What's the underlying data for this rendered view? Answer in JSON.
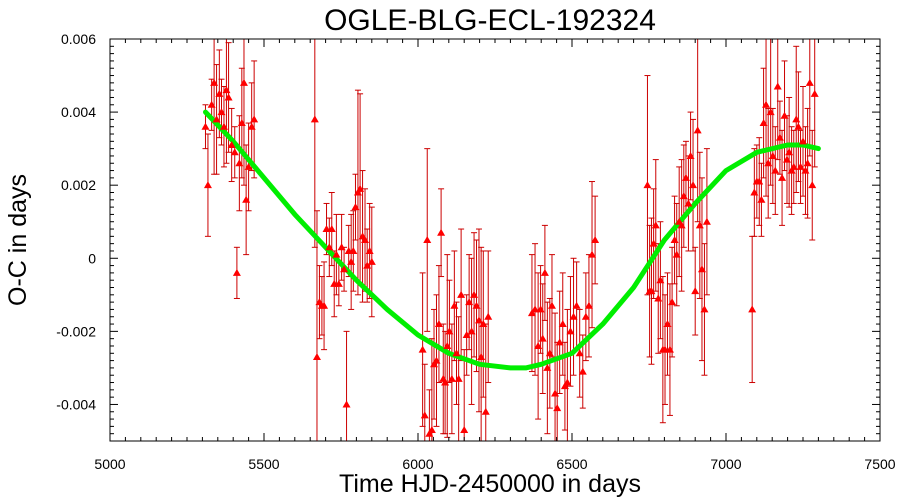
{
  "chart_data": {
    "type": "scatter",
    "title": "OGLE-BLG-ECL-192324",
    "xlabel": "Time HJD-2450000 in days",
    "ylabel": "O-C in days",
    "xlim": [
      5000,
      7500
    ],
    "ylim": [
      -0.005,
      0.006
    ],
    "x_ticks": [
      5000,
      5500,
      6000,
      6500,
      7000,
      7500
    ],
    "x_tick_labels": [
      "5000",
      "5500",
      "6000",
      "6500",
      "7000",
      "7500"
    ],
    "y_ticks": [
      -0.004,
      -0.002,
      0,
      0.002,
      0.004,
      0.006
    ],
    "y_tick_labels": [
      "-0.004",
      "-0.002",
      "0",
      "0.002",
      "0.004",
      "0.006"
    ],
    "grid": false,
    "colors": {
      "points": "#ff0000",
      "errorbars": "#cc0000",
      "fit": "#00ee00"
    },
    "series": [
      {
        "kind": "points_with_errorbars",
        "points": [
          [
            5310,
            0.0036,
            0.0006
          ],
          [
            5318,
            0.002,
            0.0014
          ],
          [
            5330,
            0.0042,
            0.0007
          ],
          [
            5338,
            0.0048,
            0.0025
          ],
          [
            5346,
            0.0038,
            0.0015
          ],
          [
            5355,
            0.0045,
            0.0012
          ],
          [
            5362,
            0.004,
            0.0009
          ],
          [
            5370,
            0.0036,
            0.0011
          ],
          [
            5378,
            0.0046,
            0.002
          ],
          [
            5385,
            0.0044,
            0.0015
          ],
          [
            5395,
            0.0031,
            0.001
          ],
          [
            5405,
            0.0029,
            0.0007
          ],
          [
            5412,
            -0.0004,
            0.0007
          ],
          [
            5420,
            0.0026,
            0.0013
          ],
          [
            5428,
            0.0037,
            0.0015
          ],
          [
            5435,
            0.0048,
            0.0028
          ],
          [
            5442,
            0.0016,
            0.0015
          ],
          [
            5450,
            0.0025,
            0.0012
          ],
          [
            5460,
            0.0036,
            0.0012
          ],
          [
            5468,
            0.0038,
            0.0016
          ],
          [
            5665,
            0.0038,
            0.0035
          ],
          [
            5672,
            -0.0027,
            0.004
          ],
          [
            5680,
            -0.0012,
            0.001
          ],
          [
            5688,
            -0.0013,
            0.0008
          ],
          [
            5695,
            -0.0013,
            0.0012
          ],
          [
            5703,
            0.0008,
            0.0007
          ],
          [
            5712,
            0.0003,
            0.0008
          ],
          [
            5720,
            0.0008,
            0.001
          ],
          [
            5728,
            -0.0007,
            0.0009
          ],
          [
            5735,
            0.0001,
            0.0011
          ],
          [
            5743,
            -0.0007,
            0.0006
          ],
          [
            5752,
            0.0003,
            0.0009
          ],
          [
            5760,
            -0.0003,
            0.0006
          ],
          [
            5768,
            -0.004,
            0.002
          ],
          [
            5775,
            0.0002,
            0.0007
          ],
          [
            5783,
            -0.0001,
            0.0013
          ],
          [
            5790,
            0.0002,
            0.0011
          ],
          [
            5797,
            0.0014,
            0.0009
          ],
          [
            5805,
            0.0018,
            0.0028
          ],
          [
            5812,
            0.0019,
            0.0026
          ],
          [
            5820,
            0.0006,
            0.0018
          ],
          [
            5828,
            0.0005,
            0.0014
          ],
          [
            5835,
            -0.0002,
            0.001
          ],
          [
            5843,
            0.0002,
            0.0013
          ],
          [
            5850,
            -0.0001,
            0.0015
          ],
          [
            6015,
            -0.0025,
            0.0021
          ],
          [
            6022,
            -0.0043,
            0.0014
          ],
          [
            6030,
            0.0005,
            0.0025
          ],
          [
            6037,
            -0.0048,
            0.0012
          ],
          [
            6045,
            -0.0047,
            0.0025
          ],
          [
            6052,
            -0.0029,
            0.0015
          ],
          [
            6060,
            -0.0028,
            0.0018
          ],
          [
            6068,
            -0.0018,
            0.0016
          ],
          [
            6075,
            0.0007,
            0.0012
          ],
          [
            6082,
            -0.0033,
            0.0015
          ],
          [
            6088,
            -0.0034,
            0.0014
          ],
          [
            6095,
            -0.0024,
            0.0025
          ],
          [
            6102,
            -0.002,
            0.0014
          ],
          [
            6110,
            -0.0033,
            0.0015
          ],
          [
            6118,
            -0.0013,
            0.0015
          ],
          [
            6125,
            -0.0026,
            0.0014
          ],
          [
            6132,
            -0.0033,
            0.0017
          ],
          [
            6140,
            -0.001,
            0.0018
          ],
          [
            6150,
            -0.0047,
            0.0022
          ],
          [
            6158,
            -0.0021,
            0.0011
          ],
          [
            6166,
            -0.0012,
            0.0013
          ],
          [
            6174,
            -0.002,
            0.002
          ],
          [
            6182,
            -0.001,
            0.0017
          ],
          [
            6190,
            -0.0013,
            0.0018
          ],
          [
            6198,
            -0.0017,
            0.0025
          ],
          [
            6205,
            -0.0027,
            0.003
          ],
          [
            6212,
            -0.0018,
            0.002
          ],
          [
            6220,
            -0.0042,
            0.0024
          ],
          [
            6228,
            -0.0016,
            0.0018
          ],
          [
            6370,
            -0.0015,
            0.0016
          ],
          [
            6380,
            -0.0014,
            0.0018
          ],
          [
            6390,
            -0.0024,
            0.002
          ],
          [
            6398,
            -0.0014,
            0.0012
          ],
          [
            6405,
            -0.0022,
            0.0015
          ],
          [
            6412,
            -0.0004,
            0.0013
          ],
          [
            6420,
            -0.003,
            0.0018
          ],
          [
            6428,
            -0.0026,
            0.0015
          ],
          [
            6435,
            -0.0013,
            0.0014
          ],
          [
            6445,
            -0.0037,
            0.0022
          ],
          [
            6452,
            -0.0041,
            0.0018
          ],
          [
            6460,
            -0.0023,
            0.0014
          ],
          [
            6470,
            -0.0018,
            0.0014
          ],
          [
            6477,
            -0.0035,
            0.0012
          ],
          [
            6485,
            -0.0034,
            0.002
          ],
          [
            6495,
            -0.002,
            0.0015
          ],
          [
            6505,
            -0.0016,
            0.0016
          ],
          [
            6515,
            -0.0013,
            0.0012
          ],
          [
            6525,
            -0.0026,
            0.0012
          ],
          [
            6535,
            -0.0031,
            0.001
          ],
          [
            6545,
            -0.0016,
            0.0012
          ],
          [
            6555,
            -0.0013,
            0.0014
          ],
          [
            6565,
            0.0001,
            0.002
          ],
          [
            6575,
            0.0005,
            0.0012
          ],
          [
            6745,
            0.002,
            0.003
          ],
          [
            6752,
            -0.0009,
            0.0018
          ],
          [
            6758,
            -0.0009,
            0.002
          ],
          [
            6765,
            0.0004,
            0.0015
          ],
          [
            6772,
            0.0009,
            0.0018
          ],
          [
            6780,
            -0.0011,
            0.0015
          ],
          [
            6787,
            -0.0006,
            0.0016
          ],
          [
            6795,
            -0.0025,
            0.002
          ],
          [
            6802,
            -0.0025,
            0.0015
          ],
          [
            6810,
            -0.0018,
            0.0014
          ],
          [
            6818,
            -0.0025,
            0.0018
          ],
          [
            6825,
            -0.0012,
            0.0015
          ],
          [
            6833,
            0.0005,
            0.0012
          ],
          [
            6840,
            0.0001,
            0.0014
          ],
          [
            6848,
            0.001,
            0.0015
          ],
          [
            6856,
            0.0009,
            0.0018
          ],
          [
            6863,
            0.0017,
            0.0014
          ],
          [
            6870,
            0.0022,
            0.001
          ],
          [
            6878,
            0.0015,
            0.0013
          ],
          [
            6885,
            0.0028,
            0.0012
          ],
          [
            6893,
            0.002,
            0.0018
          ],
          [
            6900,
            -0.0009,
            0.0012
          ],
          [
            6908,
            0.0035,
            0.0025
          ],
          [
            6915,
            0.0009,
            0.002
          ],
          [
            6922,
            -0.0003,
            0.0025
          ],
          [
            6930,
            -0.0014,
            0.0018
          ],
          [
            6938,
            0.001,
            0.002
          ],
          [
            7085,
            -0.0014,
            0.002
          ],
          [
            7092,
            0.0018,
            0.0012
          ],
          [
            7100,
            0.0021,
            0.001
          ],
          [
            7108,
            0.0021,
            0.0012
          ],
          [
            7115,
            0.0016,
            0.001
          ],
          [
            7122,
            0.0037,
            0.0015
          ],
          [
            7130,
            0.0042,
            0.0025
          ],
          [
            7137,
            0.0026,
            0.0015
          ],
          [
            7145,
            0.004,
            0.002
          ],
          [
            7152,
            0.0028,
            0.0013
          ],
          [
            7160,
            0.0024,
            0.0012
          ],
          [
            7168,
            0.0047,
            0.002
          ],
          [
            7175,
            0.0033,
            0.001
          ],
          [
            7182,
            0.0022,
            0.0013
          ],
          [
            7190,
            0.0039,
            0.0015
          ],
          [
            7198,
            0.0027,
            0.0012
          ],
          [
            7205,
            0.0029,
            0.0015
          ],
          [
            7213,
            0.0024,
            0.0012
          ],
          [
            7220,
            0.0025,
            0.001
          ],
          [
            7228,
            0.0038,
            0.002
          ],
          [
            7235,
            0.0036,
            0.0015
          ],
          [
            7242,
            0.0025,
            0.001
          ],
          [
            7250,
            0.0032,
            0.0015
          ],
          [
            7258,
            0.0024,
            0.0012
          ],
          [
            7265,
            0.0026,
            0.0015
          ],
          [
            7272,
            0.0048,
            0.002
          ],
          [
            7280,
            0.002,
            0.0015
          ],
          [
            7288,
            0.0045,
            0.002
          ]
        ]
      },
      {
        "kind": "fit_curve",
        "x": [
          5310,
          5400,
          5500,
          5600,
          5700,
          5800,
          5900,
          6000,
          6100,
          6200,
          6300,
          6350,
          6400,
          6500,
          6600,
          6700,
          6800,
          6900,
          7000,
          7100,
          7200,
          7250,
          7300
        ],
        "y": [
          0.004,
          0.0032,
          0.0022,
          0.0012,
          0.0003,
          -0.0006,
          -0.0014,
          -0.0021,
          -0.0026,
          -0.0029,
          -0.003,
          -0.003,
          -0.0029,
          -0.0026,
          -0.0018,
          -0.0008,
          0.0005,
          0.0015,
          0.0024,
          0.0029,
          0.0031,
          0.0031,
          0.003
        ]
      }
    ]
  }
}
